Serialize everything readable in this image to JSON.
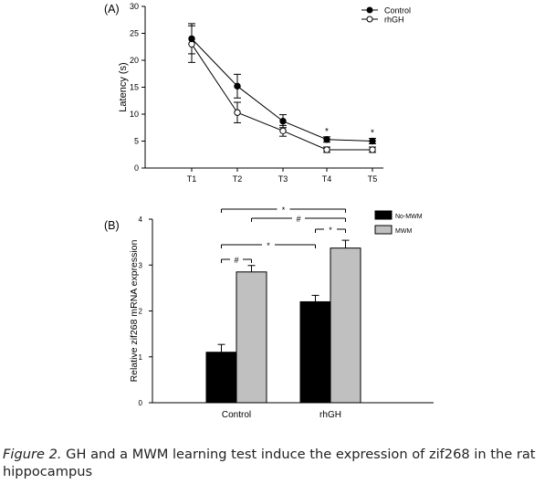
{
  "panel_a": {
    "label": "(A)",
    "chart_data": {
      "type": "line",
      "title": "",
      "xlabel": "",
      "ylabel": "Latency (s)",
      "categories": [
        "T1",
        "T2",
        "T3",
        "T4",
        "T5"
      ],
      "ylim": [
        0,
        30
      ],
      "yticks": [
        0,
        5,
        10,
        15,
        20,
        25,
        30
      ],
      "series": [
        {
          "name": "Control",
          "marker": "filled",
          "values": [
            24.0,
            15.2,
            8.7,
            5.3,
            5.0
          ],
          "errors": [
            2.8,
            2.2,
            1.2,
            0.5,
            0.5
          ]
        },
        {
          "name": "rhGH",
          "marker": "open",
          "values": [
            23.0,
            10.3,
            6.9,
            3.4,
            3.4
          ],
          "errors": [
            3.4,
            1.9,
            1.0,
            0.5,
            0.5
          ]
        }
      ],
      "annotations": [
        {
          "category": "T4",
          "text": "*"
        },
        {
          "category": "T5",
          "text": "*"
        }
      ],
      "legend_position": "top-right"
    }
  },
  "panel_b": {
    "label": "(B)",
    "chart_data": {
      "type": "bar",
      "title": "",
      "xlabel": "",
      "ylabel": "Relative zif268 mRNA expression",
      "categories": [
        "Control",
        "rhGH"
      ],
      "ylim": [
        0,
        4
      ],
      "yticks": [
        0,
        1,
        2,
        3,
        4
      ],
      "series": [
        {
          "name": "No-MWM",
          "color": "#000000",
          "values": [
            1.1,
            2.2
          ],
          "errors": [
            0.17,
            0.14
          ]
        },
        {
          "name": "MWM",
          "color": "#c0c0c0",
          "values": [
            2.85,
            3.37
          ],
          "errors": [
            0.14,
            0.17
          ]
        }
      ],
      "significance": [
        {
          "from": "Control No-MWM",
          "to": "rhGH MWM",
          "text": "*"
        },
        {
          "from": "Control MWM",
          "to": "rhGH MWM",
          "text": "#"
        },
        {
          "from": "Control No-MWM",
          "to": "rhGH No-MWM",
          "text": "*"
        },
        {
          "from": "rhGH No-MWM",
          "to": "rhGH MWM",
          "text": "*"
        },
        {
          "from": "Control No-MWM",
          "to": "Control MWM",
          "text": "#"
        }
      ],
      "legend_position": "top-right"
    }
  },
  "caption": {
    "label": "Figure 2.",
    "text": " GH and a MWM learning test induce the expression of zif268 in the rat hippocampus"
  }
}
